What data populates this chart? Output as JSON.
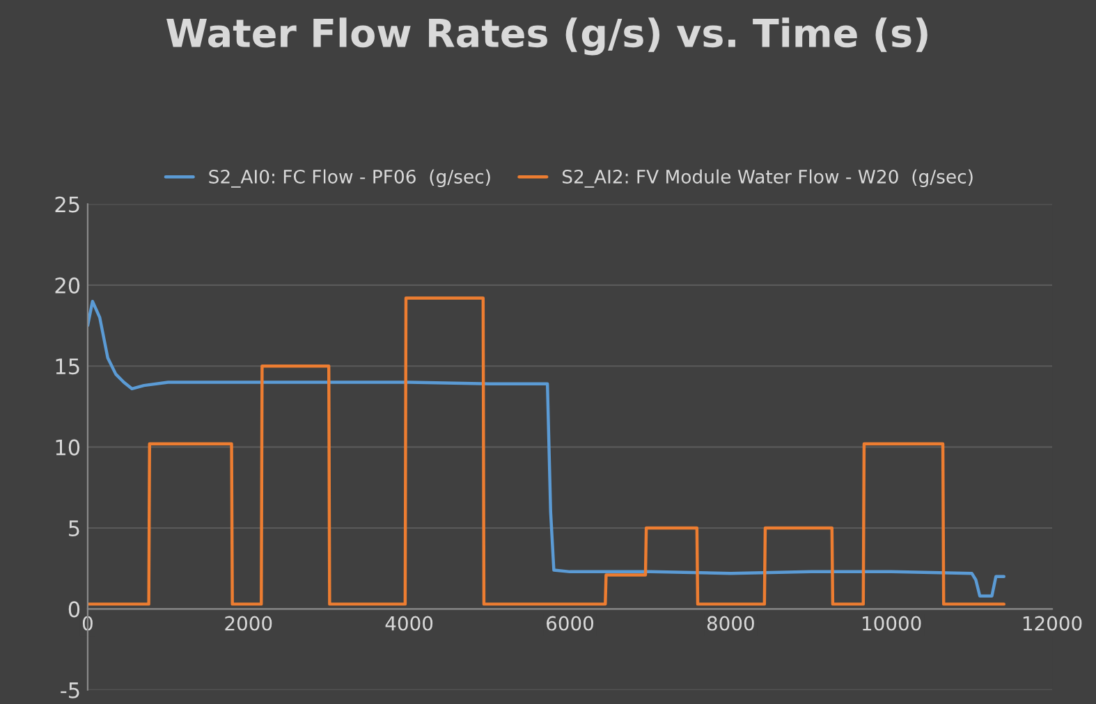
{
  "chart_data": {
    "type": "line",
    "title": "Water Flow Rates (g/s) vs. Time (s)",
    "series": [
      {
        "name": "S2_AI0: FC Flow - PF06  (g/sec)",
        "color": "#5b9bd5",
        "x": [
          0,
          60,
          150,
          250,
          350,
          450,
          550,
          700,
          1000,
          2000,
          3000,
          4000,
          5000,
          5500,
          5720,
          5760,
          5800,
          6000,
          7000,
          8000,
          9000,
          10000,
          11000,
          11050,
          11100,
          11250,
          11300,
          11400
        ],
        "values": [
          17.5,
          19,
          18,
          15.5,
          14.5,
          14,
          13.6,
          13.8,
          14,
          14,
          14,
          14,
          13.9,
          13.9,
          13.9,
          6,
          2.4,
          2.3,
          2.3,
          2.2,
          2.3,
          2.3,
          2.2,
          1.8,
          0.8,
          0.8,
          2,
          2
        ]
      },
      {
        "name": "S2_AI2: FV Module Water Flow - W20  (g/sec)",
        "color": "#ed7d31",
        "x": [
          0,
          760,
          770,
          1790,
          1800,
          2160,
          2170,
          3000,
          3010,
          3950,
          3960,
          4920,
          4930,
          6440,
          6450,
          6940,
          6950,
          7580,
          7590,
          8420,
          8430,
          9260,
          9270,
          9650,
          9660,
          10640,
          10650,
          11400
        ],
        "values": [
          0.3,
          0.3,
          10.2,
          10.2,
          0.3,
          0.3,
          15,
          15,
          0.3,
          0.3,
          19.2,
          19.2,
          0.3,
          0.3,
          2.1,
          2.1,
          5,
          5,
          0.3,
          0.3,
          5,
          5,
          0.3,
          0.3,
          10.2,
          10.2,
          0.3,
          0.3
        ]
      }
    ],
    "xlim": [
      0,
      12000
    ],
    "xticks": [
      0,
      2000,
      4000,
      6000,
      8000,
      10000,
      12000
    ],
    "ylim": [
      -5,
      25
    ],
    "yticks": [
      -5,
      0,
      5,
      10,
      15,
      20,
      25
    ],
    "grid": "y",
    "legend": "top",
    "line_style": "solid",
    "marker": "none"
  }
}
